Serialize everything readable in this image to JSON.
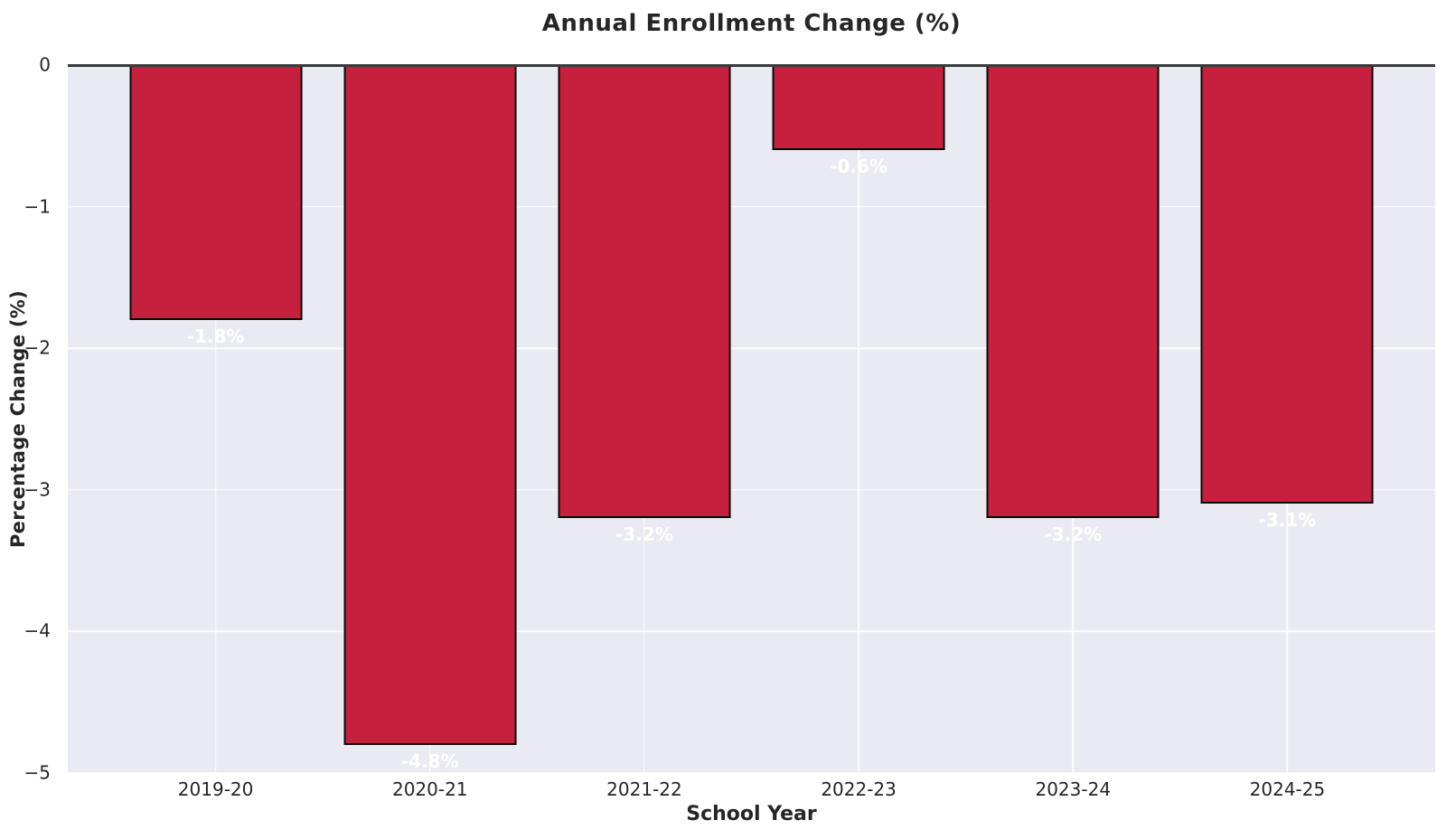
{
  "chart_data": {
    "type": "bar",
    "title": "Annual Enrollment Change (%)",
    "xlabel": "School Year",
    "ylabel": "Percentage Change (%)",
    "categories": [
      "2019-20",
      "2020-21",
      "2021-22",
      "2022-23",
      "2023-24",
      "2024-25"
    ],
    "values": [
      -1.8,
      -4.8,
      -3.2,
      -0.6,
      -3.2,
      -3.1
    ],
    "bar_labels": [
      "-1.8%",
      "-4.8%",
      "-3.2%",
      "-0.6%",
      "-3.2%",
      "-3.1%"
    ],
    "ylim": [
      -5,
      0
    ],
    "yticks": [
      0,
      -1,
      -2,
      -3,
      -4,
      -5
    ],
    "ytick_labels": [
      "0",
      "−1",
      "−2",
      "−3",
      "−4",
      "−5"
    ],
    "grid": true,
    "legend": null,
    "colors": {
      "bar_fill": "#C5213F",
      "bar_edge": "#0A0A0A",
      "plot_background": "#EAEAF2",
      "gridline": "#FFFFFF",
      "zero_line": "#3A3A3A",
      "bar_label_text": "#FFFFFF",
      "title_text": "#262626",
      "axis_label_text": "#262626",
      "tick_text": "#262626",
      "figure_background": "#FFFFFF"
    }
  }
}
